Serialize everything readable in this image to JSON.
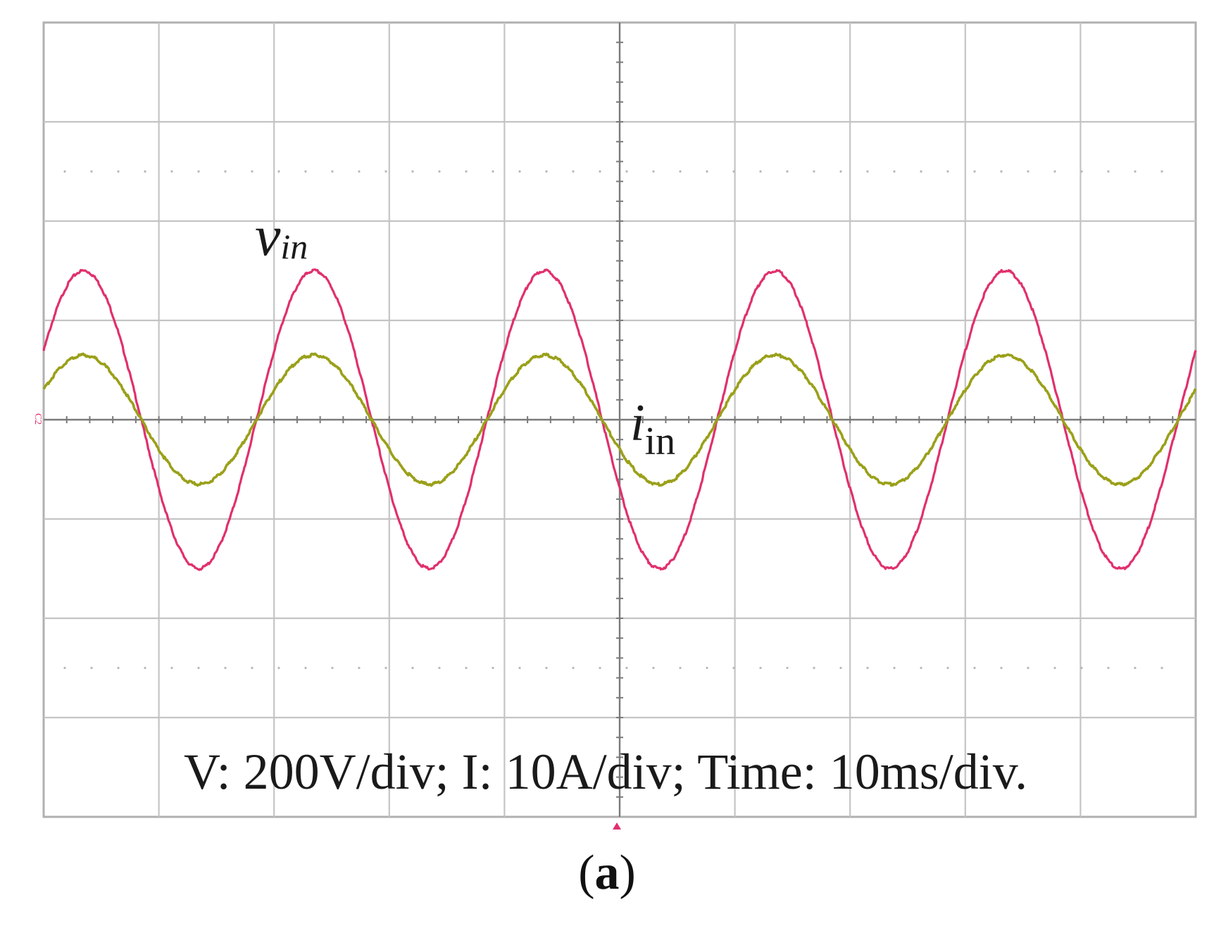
{
  "chart_data": {
    "type": "line",
    "x_unit": "ms",
    "x_range": [
      0,
      100
    ],
    "y_range_div": [
      -4,
      4
    ],
    "grid": true,
    "x_divisions": 10,
    "y_divisions": 8,
    "scale_label": "V: 200V/div; I: 10A/div; Time: 10ms/div.",
    "caption": {
      "open": "(",
      "letter": "a",
      "close": ")"
    },
    "channel_marker": "C2",
    "series": [
      {
        "name": "v",
        "subscript": "in",
        "unit": "V",
        "color": "#e0306e",
        "amplitude": 300,
        "frequency_hz": 50,
        "phase_deg": 27.5,
        "label_style": "italic"
      },
      {
        "name": "i",
        "subscript": "in",
        "unit": "A",
        "color": "#9aa019",
        "amplitude": 6.5,
        "frequency_hz": 50,
        "phase_deg": 27.5,
        "label_style": "mixed"
      }
    ]
  },
  "colors": {
    "grid": "#c4c4c4",
    "border": "#b0b0b0",
    "axis": "#7a7a7a",
    "trigger_marker": "#e0306e"
  }
}
